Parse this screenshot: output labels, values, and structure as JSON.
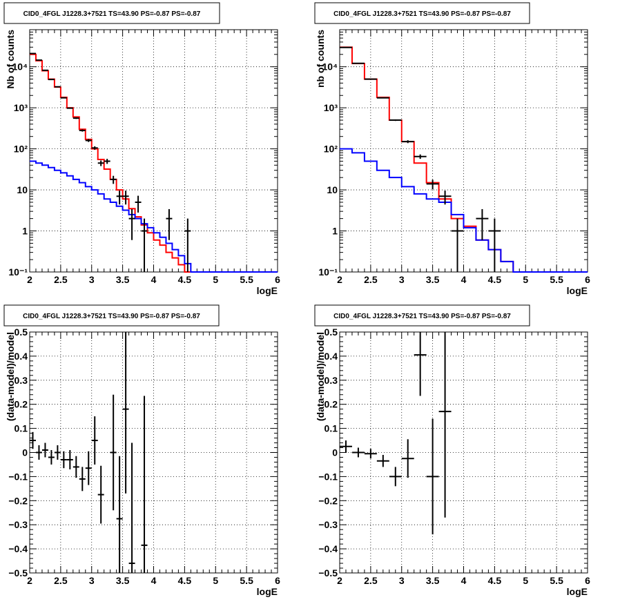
{
  "chart_data": [
    {
      "type": "line",
      "title": "CID0_4FGL J1228.3+7521 TS=43.90 PS=-0.87 PS=-0.87",
      "xlabel": "logE",
      "ylabel": "Nb of counts",
      "log_y": true,
      "xlim": [
        2,
        6
      ],
      "ylim": [
        0.1,
        80000
      ],
      "grid": true,
      "x_ticks": [
        "2",
        "2.5",
        "3",
        "3.5",
        "4",
        "4.5",
        "5",
        "5.5",
        "6"
      ],
      "y_ticks": [
        {
          "value": 0.1,
          "label": "10⁻¹"
        },
        {
          "value": 1,
          "label": "1"
        },
        {
          "value": 10,
          "label": "10"
        },
        {
          "value": 100,
          "label": "10²"
        },
        {
          "value": 1000,
          "label": "10³"
        },
        {
          "value": 10000,
          "label": "10⁴"
        }
      ],
      "bin_edges": [
        2.0,
        2.1,
        2.2,
        2.3,
        2.4,
        2.5,
        2.6,
        2.7,
        2.8,
        2.9,
        3.0,
        3.1,
        3.2,
        3.3,
        3.4,
        3.5,
        3.6,
        3.7,
        3.8,
        3.9,
        4.0,
        4.1,
        4.2,
        4.3,
        4.4,
        4.5,
        4.6,
        4.7,
        4.8,
        4.9,
        5.0,
        5.1,
        5.2,
        5.3,
        5.4,
        5.5,
        5.6,
        5.7,
        5.8,
        5.9,
        6.0
      ],
      "series": [
        {
          "color": "#ff0000",
          "values": [
            20000,
            14000,
            8000,
            5000,
            3200,
            1800,
            1000,
            600,
            300,
            170,
            100,
            55,
            32,
            18,
            10,
            6,
            3.5,
            2.2,
            1.4,
            0.9,
            0.6,
            0.45,
            0.3,
            0.22,
            0.15,
            0.1,
            0.1,
            0.1,
            0.1,
            0.1,
            0.1,
            0.1,
            0.1,
            0.1,
            0.1,
            0.1,
            0.1,
            0.1,
            0.1,
            0.1
          ]
        },
        {
          "color": "#0000ff",
          "values": [
            50,
            45,
            40,
            35,
            30,
            26,
            22,
            18,
            15,
            12,
            10,
            8,
            6,
            5,
            4,
            3.2,
            2.5,
            2,
            1.5,
            1.2,
            0.9,
            0.7,
            0.5,
            0.35,
            0.25,
            0.16,
            0.1,
            0.1,
            0.1,
            0.1,
            0.1,
            0.1,
            0.1,
            0.1,
            0.1,
            0.1,
            0.1,
            0.1,
            0.1,
            0.1
          ]
        }
      ],
      "points": [
        {
          "x": 2.05,
          "y": 21000,
          "yerr_lo": 150,
          "yerr_hi": 150
        },
        {
          "x": 2.15,
          "y": 14500,
          "yerr_lo": 120,
          "yerr_hi": 120
        },
        {
          "x": 2.25,
          "y": 8200,
          "yerr_lo": 90,
          "yerr_hi": 90
        },
        {
          "x": 2.35,
          "y": 4900,
          "yerr_lo": 70,
          "yerr_hi": 70
        },
        {
          "x": 2.45,
          "y": 3250,
          "yerr_lo": 55,
          "yerr_hi": 55
        },
        {
          "x": 2.55,
          "y": 1750,
          "yerr_lo": 40,
          "yerr_hi": 40
        },
        {
          "x": 2.65,
          "y": 980,
          "yerr_lo": 30,
          "yerr_hi": 30
        },
        {
          "x": 2.75,
          "y": 560,
          "yerr_lo": 24,
          "yerr_hi": 24
        },
        {
          "x": 2.85,
          "y": 280,
          "yerr_lo": 17,
          "yerr_hi": 17
        },
        {
          "x": 2.95,
          "y": 160,
          "yerr_lo": 13,
          "yerr_hi": 13
        },
        {
          "x": 3.05,
          "y": 105,
          "yerr_lo": 10,
          "yerr_hi": 10
        },
        {
          "x": 3.15,
          "y": 45,
          "yerr_lo": 7,
          "yerr_hi": 7
        },
        {
          "x": 3.25,
          "y": 50,
          "yerr_lo": 7,
          "yerr_hi": 7
        },
        {
          "x": 3.35,
          "y": 18,
          "yerr_lo": 4,
          "yerr_hi": 4
        },
        {
          "x": 3.45,
          "y": 7,
          "yerr_lo": 2.6,
          "yerr_hi": 2.6
        },
        {
          "x": 3.55,
          "y": 7,
          "yerr_lo": 2.6,
          "yerr_hi": 2.6
        },
        {
          "x": 3.65,
          "y": 2,
          "yerr_lo": 1.4,
          "yerr_hi": 1.4
        },
        {
          "x": 3.75,
          "y": 5,
          "yerr_lo": 2.2,
          "yerr_hi": 2.2
        },
        {
          "x": 3.85,
          "y": 1,
          "yerr_lo": 0.95,
          "yerr_hi": 1
        },
        {
          "x": 4.25,
          "y": 2,
          "yerr_lo": 1.4,
          "yerr_hi": 1.4
        },
        {
          "x": 4.55,
          "y": 1,
          "yerr_lo": 0.95,
          "yerr_hi": 1
        }
      ]
    },
    {
      "type": "line",
      "title": "CID0_4FGL J1228.3+7521 TS=43.90 PS=-0.87 PS=-0.87",
      "xlabel": "logE",
      "ylabel": "nb of counts",
      "log_y": true,
      "xlim": [
        2,
        6
      ],
      "ylim": [
        0.1,
        80000
      ],
      "grid": true,
      "x_ticks": [
        "2",
        "2.5",
        "3",
        "3.5",
        "4",
        "4.5",
        "5",
        "5.5",
        "6"
      ],
      "y_ticks": [
        {
          "value": 0.1,
          "label": "10⁻¹"
        },
        {
          "value": 1,
          "label": "1"
        },
        {
          "value": 10,
          "label": "10"
        },
        {
          "value": 100,
          "label": "10²"
        },
        {
          "value": 1000,
          "label": "10³"
        },
        {
          "value": 10000,
          "label": "10⁴"
        }
      ],
      "bin_edges": [
        2.0,
        2.2,
        2.4,
        2.6,
        2.8,
        3.0,
        3.2,
        3.4,
        3.6,
        3.8,
        4.0,
        4.2,
        4.4,
        4.6,
        4.8,
        5.0,
        5.2,
        5.4,
        5.6,
        5.8,
        6.0
      ],
      "series": [
        {
          "color": "#ff0000",
          "values": [
            30000,
            12000,
            5000,
            1800,
            500,
            150,
            45,
            15,
            6,
            2,
            1.3,
            0.6,
            0.35,
            0.18,
            0.1,
            0.1,
            0.1,
            0.1,
            0.1,
            0.1
          ]
        },
        {
          "color": "#0000ff",
          "values": [
            100,
            80,
            50,
            30,
            20,
            12,
            8,
            6,
            5,
            2.5,
            1.2,
            0.6,
            0.35,
            0.18,
            0.1,
            0.1,
            0.1,
            0.1,
            0.1,
            0.1
          ]
        }
      ],
      "points": [
        {
          "x": 2.1,
          "y": 29500,
          "yerr_lo": 170,
          "yerr_hi": 170
        },
        {
          "x": 2.3,
          "y": 12100,
          "yerr_lo": 110,
          "yerr_hi": 110
        },
        {
          "x": 2.5,
          "y": 5000,
          "yerr_lo": 70,
          "yerr_hi": 70
        },
        {
          "x": 2.7,
          "y": 1750,
          "yerr_lo": 40,
          "yerr_hi": 40
        },
        {
          "x": 2.9,
          "y": 500,
          "yerr_lo": 22,
          "yerr_hi": 22
        },
        {
          "x": 3.1,
          "y": 150,
          "yerr_lo": 12,
          "yerr_hi": 12
        },
        {
          "x": 3.3,
          "y": 65,
          "yerr_lo": 8,
          "yerr_hi": 8
        },
        {
          "x": 3.5,
          "y": 14,
          "yerr_lo": 3.7,
          "yerr_hi": 3.7
        },
        {
          "x": 3.7,
          "y": 7,
          "yerr_lo": 2.6,
          "yerr_hi": 2.6
        },
        {
          "x": 3.9,
          "y": 1,
          "yerr_lo": 0.95,
          "yerr_hi": 1
        },
        {
          "x": 4.3,
          "y": 2,
          "yerr_lo": 1.4,
          "yerr_hi": 1.4
        },
        {
          "x": 4.5,
          "y": 1,
          "yerr_lo": 0.95,
          "yerr_hi": 1
        }
      ]
    },
    {
      "type": "scatter",
      "title": "CID0_4FGL J1228.3+7521 TS=43.90 PS=-0.87 PS=-0.87",
      "xlabel": "logE",
      "ylabel": "(data-model)/model",
      "log_y": false,
      "xlim": [
        2,
        6
      ],
      "ylim": [
        -0.5,
        0.5
      ],
      "grid": true,
      "x_ticks": [
        "2",
        "2.5",
        "3",
        "3.5",
        "4",
        "4.5",
        "5",
        "5.5",
        "6"
      ],
      "y_ticks": [
        {
          "value": -0.5,
          "label": "−0.5"
        },
        {
          "value": -0.4,
          "label": "−0.4"
        },
        {
          "value": -0.3,
          "label": "−0.3"
        },
        {
          "value": -0.2,
          "label": "−0.2"
        },
        {
          "value": -0.1,
          "label": "−0.1"
        },
        {
          "value": 0,
          "label": "0"
        },
        {
          "value": 0.1,
          "label": "0.1"
        },
        {
          "value": 0.2,
          "label": "0.2"
        },
        {
          "value": 0.3,
          "label": "0.3"
        },
        {
          "value": 0.4,
          "label": "0.4"
        },
        {
          "value": 0.5,
          "label": "0.5"
        }
      ],
      "xerr": 0.05,
      "points": [
        {
          "x": 2.05,
          "y": 0.05,
          "yerr": 0.035
        },
        {
          "x": 2.15,
          "y": 0.0,
          "yerr": 0.03
        },
        {
          "x": 2.25,
          "y": 0.01,
          "yerr": 0.03
        },
        {
          "x": 2.35,
          "y": -0.02,
          "yerr": 0.03
        },
        {
          "x": 2.45,
          "y": 0.0,
          "yerr": 0.03
        },
        {
          "x": 2.55,
          "y": -0.03,
          "yerr": 0.035
        },
        {
          "x": 2.65,
          "y": -0.03,
          "yerr": 0.04
        },
        {
          "x": 2.75,
          "y": -0.06,
          "yerr": 0.045
        },
        {
          "x": 2.85,
          "y": -0.11,
          "yerr": 0.05
        },
        {
          "x": 2.95,
          "y": -0.065,
          "yerr": 0.07
        },
        {
          "x": 3.05,
          "y": 0.05,
          "yerr": 0.1
        },
        {
          "x": 3.15,
          "y": -0.175,
          "yerr": 0.12
        },
        {
          "x": 3.35,
          "y": 0.0,
          "yerr": 0.24
        },
        {
          "x": 3.45,
          "y": -0.275,
          "yerr": 0.26
        },
        {
          "x": 3.55,
          "y": 0.18,
          "yerr": 0.35
        },
        {
          "x": 3.65,
          "y": -0.46,
          "yerr": 0.5
        },
        {
          "x": 3.85,
          "y": -0.385,
          "yerr": 0.62
        }
      ]
    },
    {
      "type": "scatter",
      "title": "CID0_4FGL J1228.3+7521 TS=43.90 PS=-0.87 PS=-0.87",
      "xlabel": "logE",
      "ylabel": "(data-model)/model",
      "log_y": false,
      "xlim": [
        2,
        6
      ],
      "ylim": [
        -0.5,
        0.5
      ],
      "grid": true,
      "x_ticks": [
        "2",
        "2.5",
        "3",
        "3.5",
        "4",
        "4.5",
        "5",
        "5.5",
        "6"
      ],
      "y_ticks": [
        {
          "value": -0.5,
          "label": "−0.5"
        },
        {
          "value": -0.4,
          "label": "−0.4"
        },
        {
          "value": -0.3,
          "label": "−0.3"
        },
        {
          "value": -0.2,
          "label": "−0.2"
        },
        {
          "value": -0.1,
          "label": "−0.1"
        },
        {
          "value": 0,
          "label": "0"
        },
        {
          "value": 0.1,
          "label": "0.1"
        },
        {
          "value": 0.2,
          "label": "0.2"
        },
        {
          "value": 0.3,
          "label": "0.3"
        },
        {
          "value": 0.4,
          "label": "0.4"
        },
        {
          "value": 0.5,
          "label": "0.5"
        }
      ],
      "xerr": 0.1,
      "points": [
        {
          "x": 2.1,
          "y": 0.025,
          "yerr": 0.025
        },
        {
          "x": 2.3,
          "y": 0.0,
          "yerr": 0.02
        },
        {
          "x": 2.5,
          "y": -0.005,
          "yerr": 0.02
        },
        {
          "x": 2.7,
          "y": -0.035,
          "yerr": 0.025
        },
        {
          "x": 2.9,
          "y": -0.1,
          "yerr": 0.04
        },
        {
          "x": 3.1,
          "y": -0.025,
          "yerr": 0.08
        },
        {
          "x": 3.3,
          "y": 0.405,
          "yerr": 0.17
        },
        {
          "x": 3.5,
          "y": -0.1,
          "yerr": 0.24
        },
        {
          "x": 3.7,
          "y": 0.17,
          "yerr": 0.44
        }
      ]
    }
  ]
}
